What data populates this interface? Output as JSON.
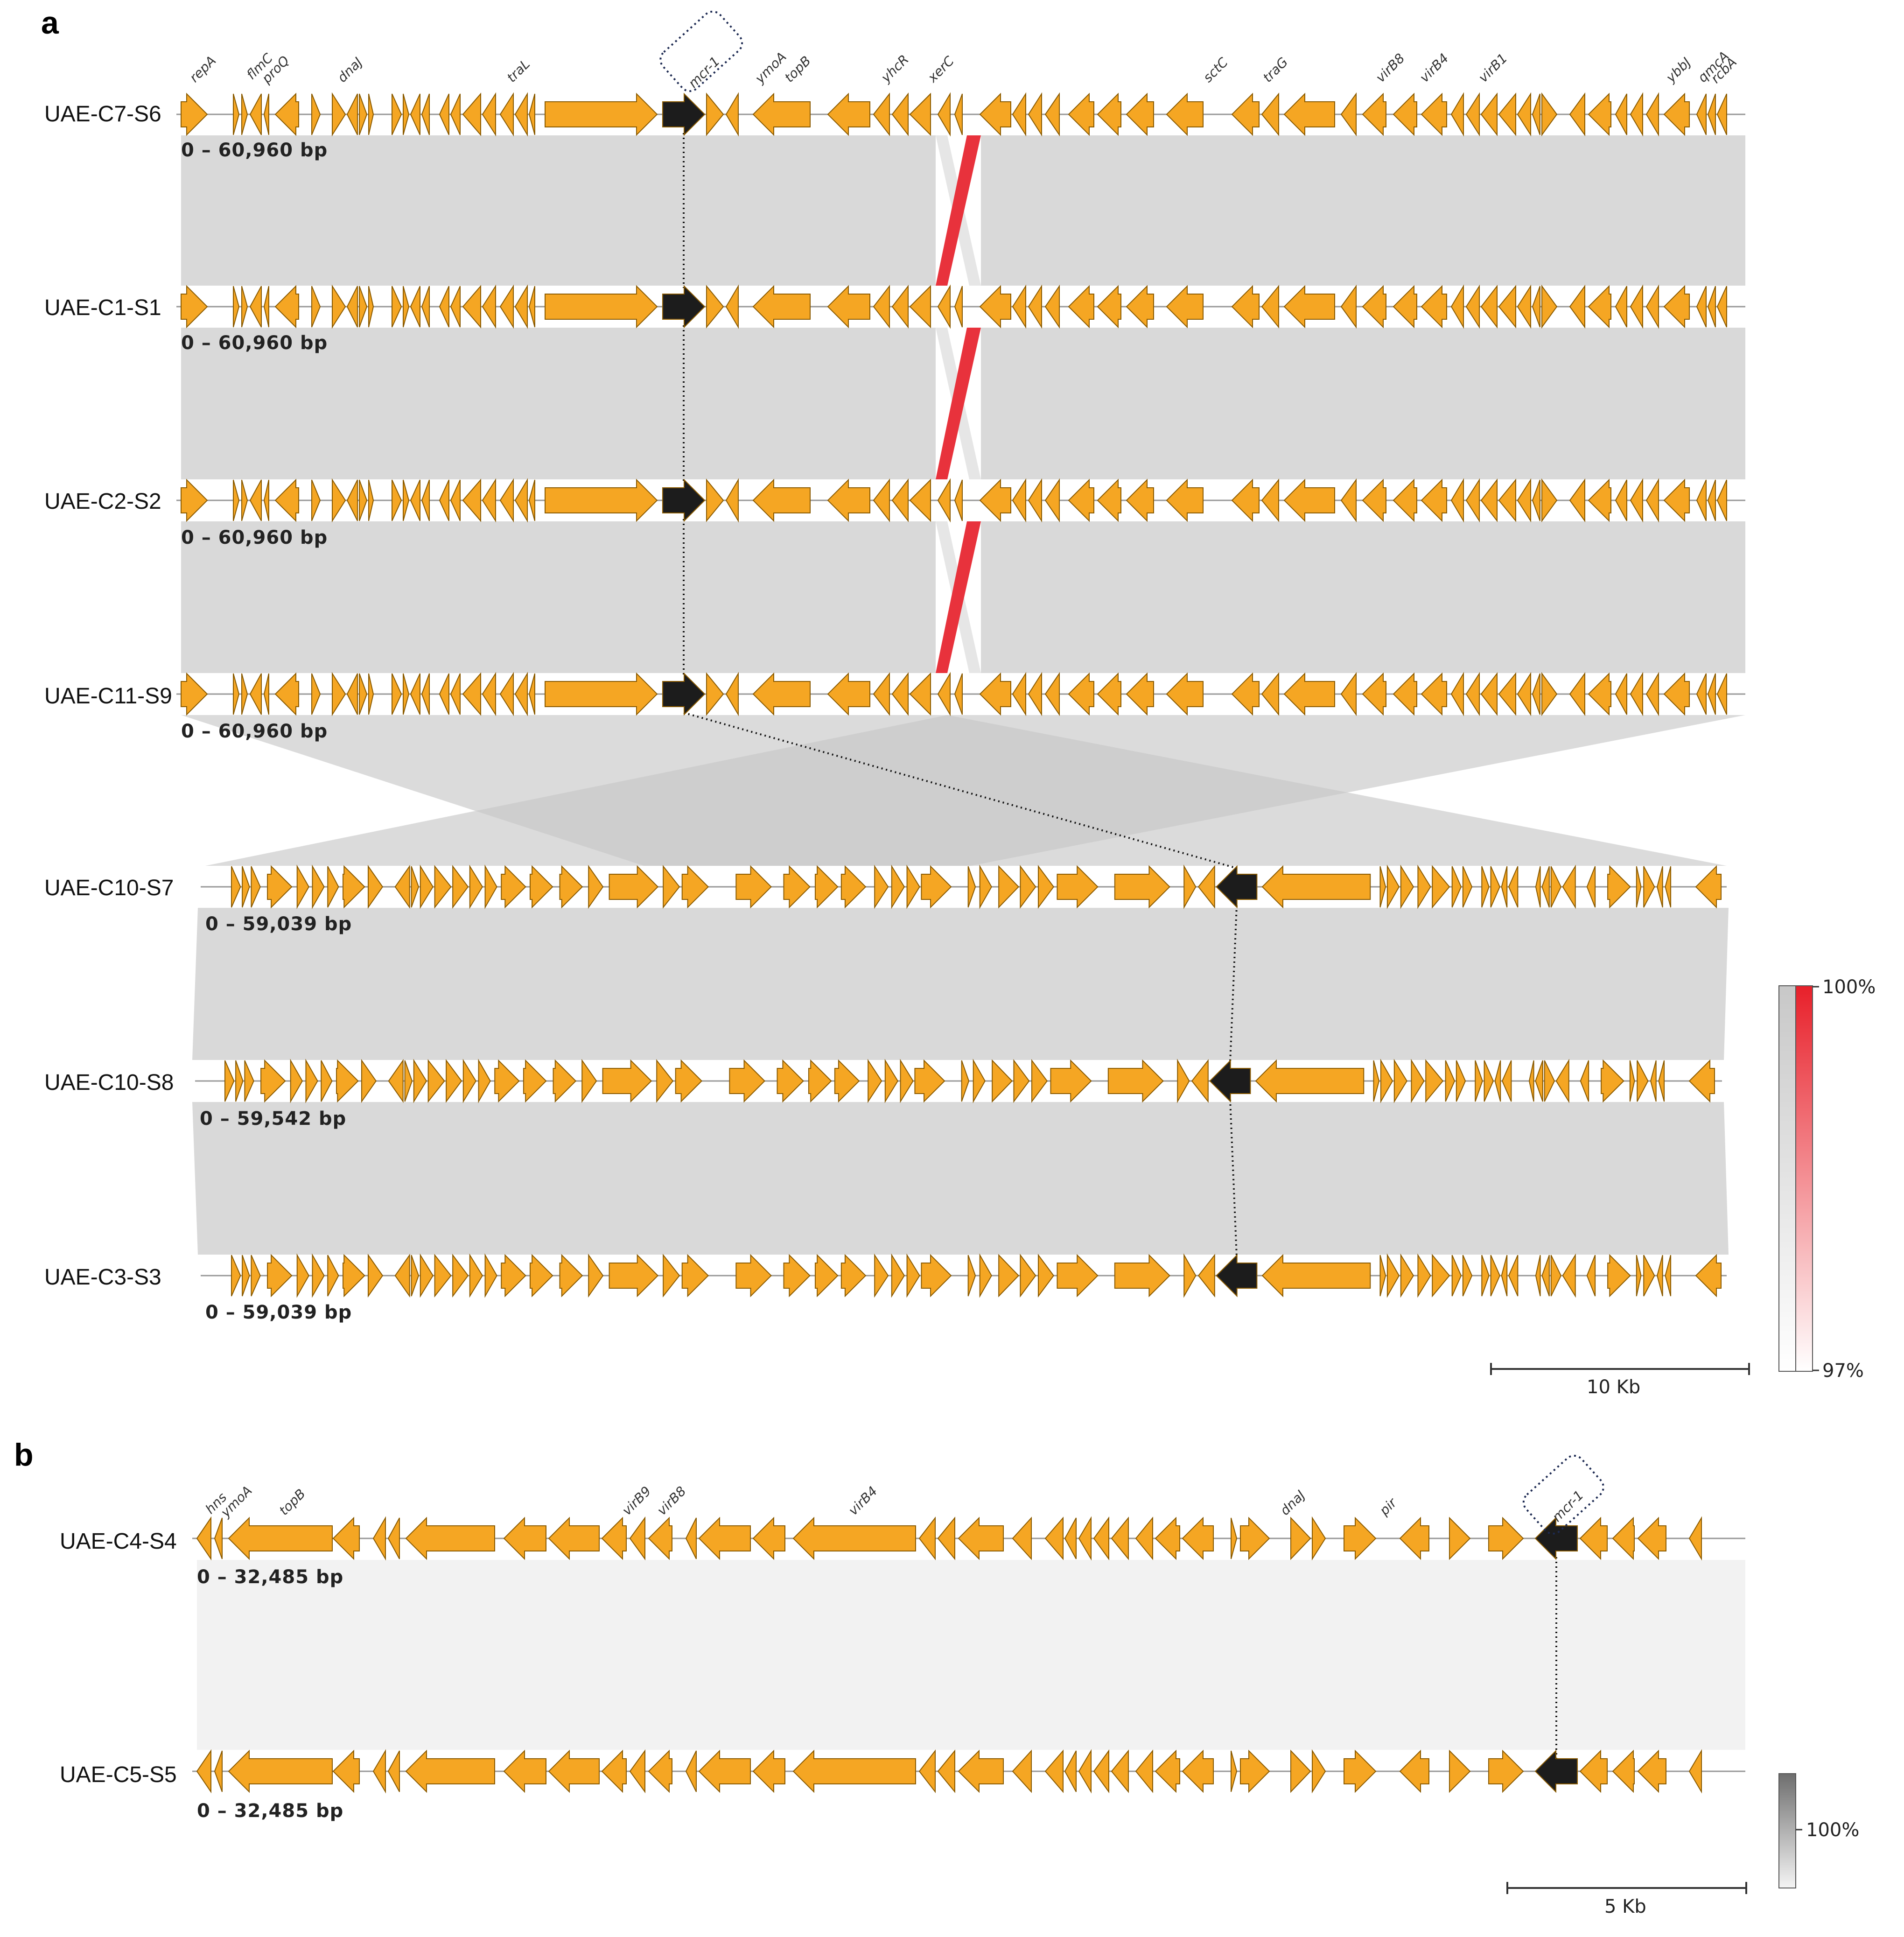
{
  "panels": [
    {
      "label": "a",
      "tracks": [
        {
          "name": "UAE-C7-S6",
          "range": "0 – 60,960 bp"
        },
        {
          "name": "UAE-C1-S1",
          "range": "0 – 60,960 bp"
        },
        {
          "name": "UAE-C2-S2",
          "range": "0 – 60,960 bp"
        },
        {
          "name": "UAE-C11-S9",
          "range": "0 – 60,960 bp"
        },
        {
          "name": "UAE-C10-S7",
          "range": "0 – 59,039 bp"
        },
        {
          "name": "UAE-C10-S8",
          "range": "0 – 59,542 bp"
        },
        {
          "name": "UAE-C3-S3",
          "range": "0 – 59,039 bp"
        }
      ],
      "gene_labels": [
        "repA",
        "flmC",
        "proQ",
        "dnaJ",
        "traL",
        "mcr-1",
        "ymoA",
        "topB",
        "yhcR",
        "xerC",
        "sctC",
        "traG",
        "virB8",
        "virB4",
        "virB1",
        "ybbJ",
        "qmcA",
        "rcbA"
      ],
      "scale_bar": "10 Kb",
      "legend": {
        "max": "100%",
        "min": "97%"
      }
    },
    {
      "label": "b",
      "tracks": [
        {
          "name": "UAE-C4-S4",
          "range": "0 – 32,485 bp"
        },
        {
          "name": "UAE-C5-S5",
          "range": "0 – 32,485 bp"
        }
      ],
      "gene_labels": [
        "hns",
        "ymoA",
        "topB",
        "virB9",
        "virB8",
        "virB4",
        "dnaJ",
        "pir",
        "mcr-1"
      ],
      "scale_bar": "5 Kb",
      "legend": {
        "max": "100%"
      }
    }
  ],
  "colors": {
    "gene": "#f5a623",
    "gene_stroke": "#8a5a00",
    "mcr1": "#1c1c1c",
    "identity_band": "#d9d9d9",
    "identity_band_b": "#f2f2f2",
    "inversion": "#e8323c"
  }
}
